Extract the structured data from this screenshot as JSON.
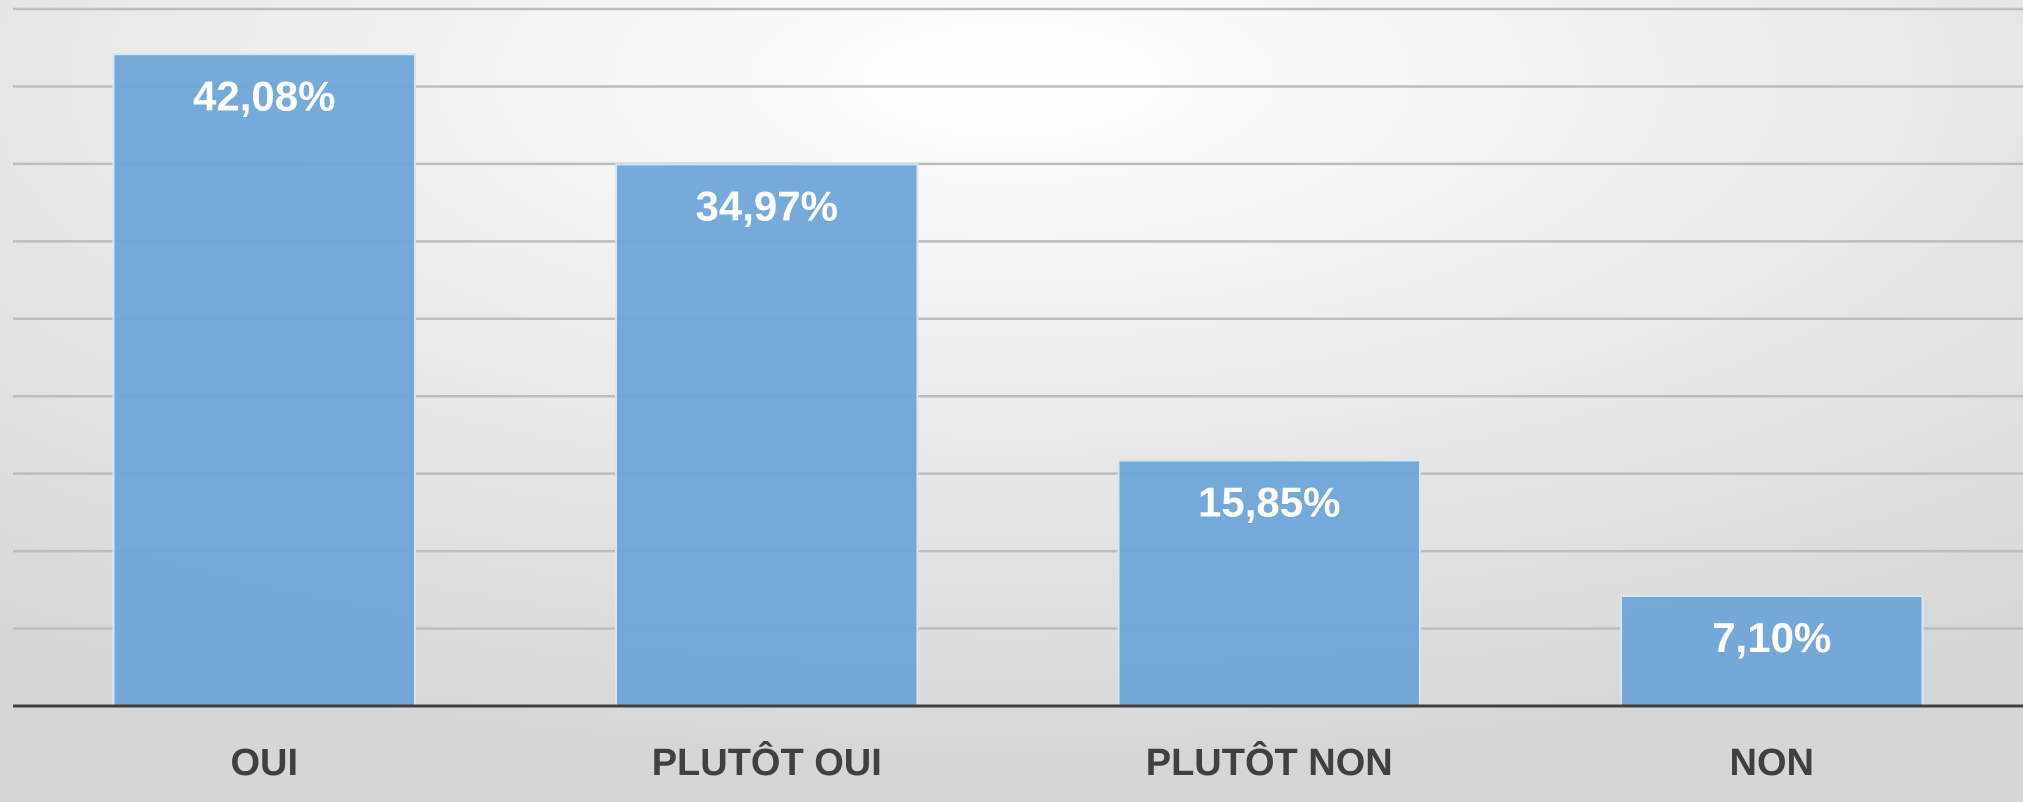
{
  "chart_data": {
    "type": "bar",
    "categories": [
      "OUI",
      "PLUTÔT OUI",
      "PLUTÔT NON",
      "NON"
    ],
    "values": [
      42.08,
      34.97,
      15.85,
      7.1
    ],
    "value_labels": [
      "42,08%",
      "34,97%",
      "15,85%",
      "7,10%"
    ],
    "color": "#6fa5d8",
    "ylim": [
      0,
      45
    ],
    "yticks": [
      0,
      5,
      10,
      15,
      20,
      25,
      30,
      35,
      40,
      45
    ],
    "grid": true
  }
}
